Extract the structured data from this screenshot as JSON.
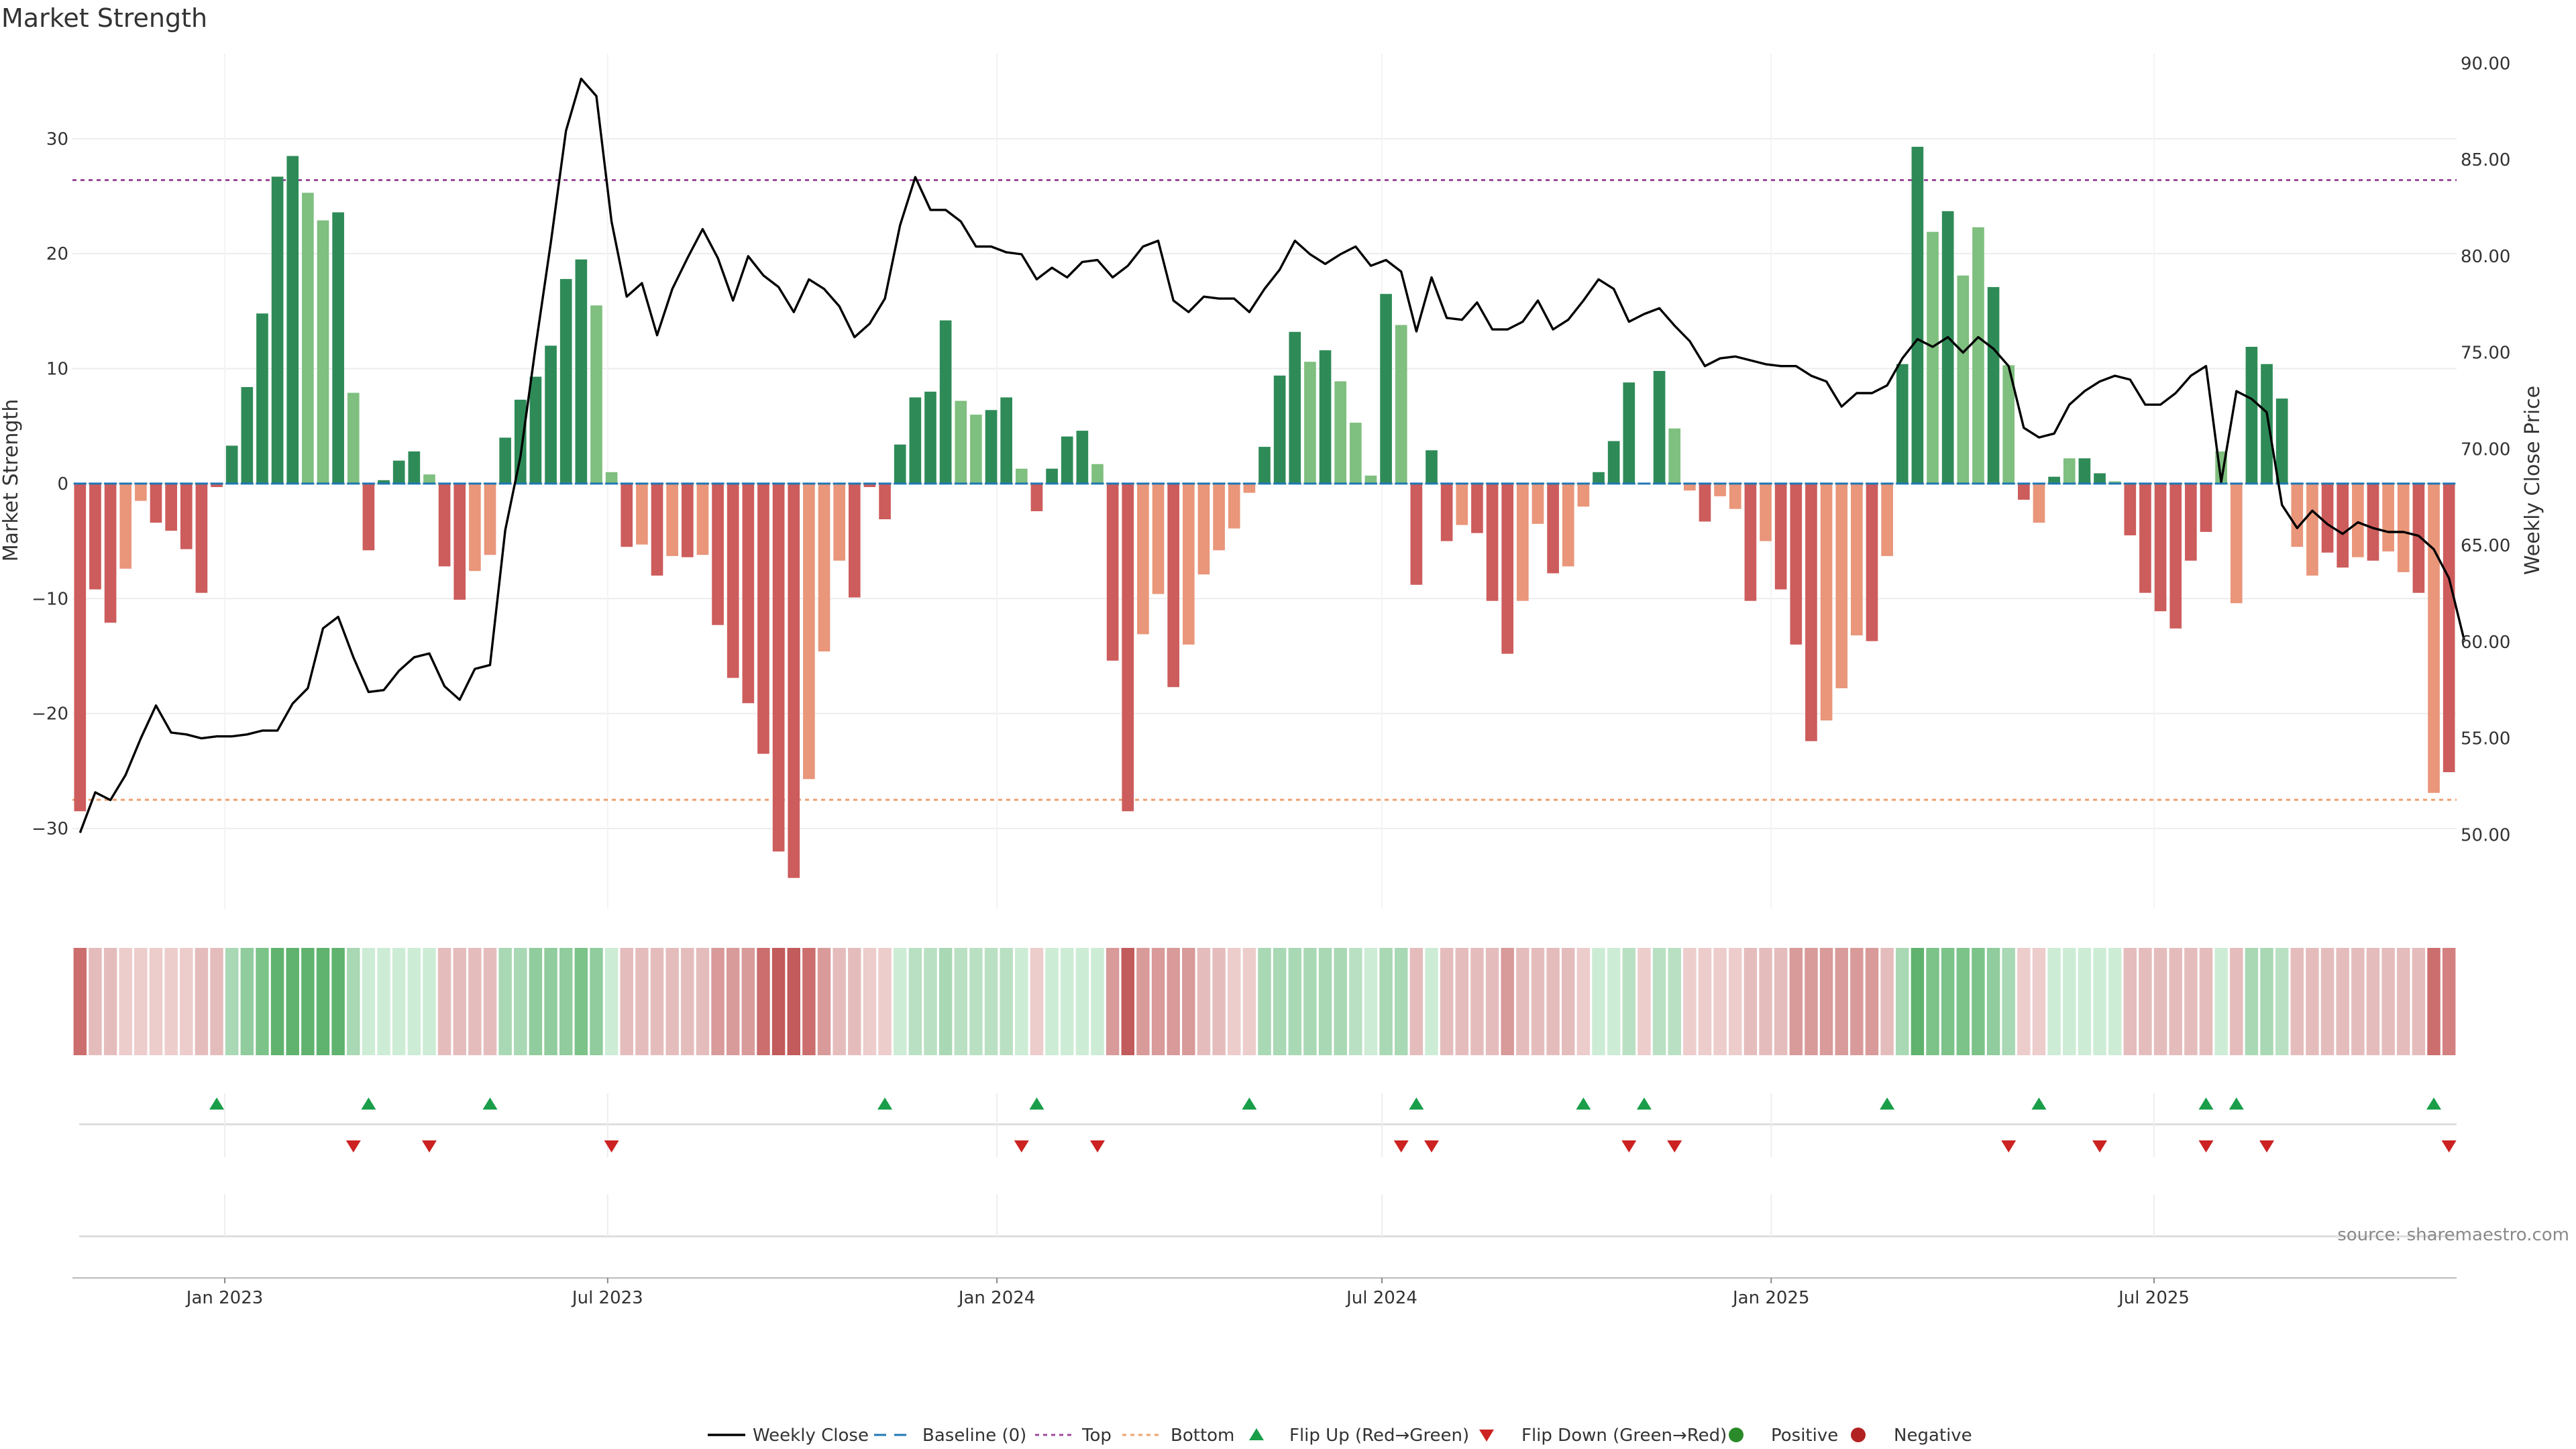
{
  "chart_data": {
    "type": "bar",
    "title": "Market Strength",
    "ylabel": "Market Strength",
    "y2label": "Weekly Close Price",
    "ylim": [
      -37,
      37.4
    ],
    "y2lim": [
      46.15,
      90.5
    ],
    "yticks": [
      -30,
      -20,
      -10,
      0,
      10,
      20,
      30
    ],
    "yticklabels": [
      "−30",
      "−20",
      "−10",
      "0",
      "10",
      "20",
      "30"
    ],
    "y2ticks": [
      50,
      55,
      60,
      65,
      70,
      75,
      80,
      85,
      90
    ],
    "y2ticklabels": [
      "50.00",
      "55.00",
      "60.00",
      "65.00",
      "70.00",
      "75.00",
      "80.00",
      "85.00",
      "90.00"
    ],
    "x_start": "2022-10-21",
    "x_end": "2025-11-21",
    "xticks": [
      "2023-01-01",
      "2023-07-01",
      "2024-01-01",
      "2024-07-01",
      "2025-01-01",
      "2025-07-01"
    ],
    "xticklabels": [
      "Jan 2023",
      "Jul 2023",
      "Jan 2024",
      "Jul 2024",
      "Jan 2025",
      "Jul 2025"
    ],
    "top_line": 26.4,
    "bottom_line": -27.5,
    "grid": true,
    "legend_position": "bottom-center",
    "source_text": "source: sharemaestro.com",
    "legend": [
      "Weekly Close",
      "Baseline (0)",
      "Top",
      "Bottom",
      "Flip Up (Red→Green)",
      "Flip Down (Green→Red)",
      "Positive",
      "Negative"
    ],
    "colors": {
      "strong_green": "#2e8b57",
      "light_green": "#7fbf7f",
      "strong_red": "#cd5c5c",
      "light_red": "#e9967a",
      "line": "#000000",
      "baseline": "#1f77b4",
      "top": "#9b4a9b",
      "bottom": "#f0a070",
      "flip_up": "#1a9e4a",
      "flip_down": "#cc2222",
      "positive_dot": "#2a8a2a",
      "negative_dot": "#b22222"
    },
    "bar_values": [
      -28.5,
      -9.2,
      -12.1,
      -7.4,
      -1.5,
      -3.4,
      -4.1,
      -5.7,
      -9.5,
      -0.3,
      3.3,
      8.4,
      14.8,
      26.7,
      28.5,
      25.3,
      22.9,
      23.6,
      7.9,
      -5.8,
      0.3,
      2.0,
      2.8,
      0.8,
      -7.2,
      -10.1,
      -7.6,
      -6.2,
      4.0,
      7.3,
      9.3,
      12.0,
      17.8,
      19.5,
      15.5,
      1.0,
      -5.5,
      -5.3,
      -8.0,
      -6.3,
      -6.4,
      -6.2,
      -12.3,
      -16.9,
      -19.1,
      -23.5,
      -32.0,
      -34.3,
      -25.7,
      -14.6,
      -6.7,
      -9.9,
      -0.3,
      -3.1,
      3.4,
      7.5,
      8.0,
      14.2,
      7.2,
      6.0,
      6.4,
      7.5,
      1.3,
      -2.4,
      1.3,
      4.1,
      4.6,
      1.7,
      -15.4,
      -28.5,
      -13.1,
      -9.6,
      -17.7,
      -14.0,
      -7.9,
      -5.8,
      -3.9,
      -0.8,
      3.2,
      9.4,
      13.2,
      10.6,
      11.6,
      8.9,
      5.3,
      0.7,
      16.5,
      13.8,
      -8.8,
      2.9,
      -5.0,
      -3.6,
      -4.3,
      -10.2,
      -14.8,
      -10.2,
      -3.5,
      -7.8,
      -7.2,
      -2.0,
      1.0,
      3.7,
      8.8,
      0.0,
      9.8,
      4.8,
      -0.6,
      -3.3,
      -1.1,
      -2.2,
      -10.2,
      -5.0,
      -9.2,
      -14.0,
      -22.4,
      -20.6,
      -17.8,
      -13.2,
      -13.7,
      -6.3,
      10.4,
      29.3,
      21.9,
      23.7,
      18.1,
      22.3,
      17.1,
      10.3,
      -1.4,
      -3.4,
      0.6,
      2.2,
      2.2,
      0.9,
      0.2,
      -4.5,
      -9.5,
      -11.1,
      -12.6,
      -6.7,
      -4.2,
      2.8,
      -10.4,
      11.9,
      10.4,
      7.4,
      -5.5,
      -8.0,
      -6.0,
      -7.3,
      -6.4,
      -6.7,
      -5.9,
      -7.7,
      -9.5,
      -26.9,
      -25.1
    ],
    "bar_shades": [
      "D",
      "D",
      "D",
      "L",
      "L",
      "D",
      "D",
      "D",
      "D",
      "D",
      "D",
      "D",
      "D",
      "D",
      "D",
      "L",
      "L",
      "D",
      "L",
      "D",
      "D",
      "D",
      "D",
      "L",
      "D",
      "D",
      "L",
      "L",
      "D",
      "D",
      "D",
      "D",
      "D",
      "D",
      "L",
      "L",
      "D",
      "L",
      "D",
      "L",
      "D",
      "L",
      "D",
      "D",
      "D",
      "D",
      "D",
      "D",
      "L",
      "L",
      "L",
      "D",
      "D",
      "D",
      "D",
      "D",
      "D",
      "D",
      "L",
      "L",
      "D",
      "D",
      "L",
      "D",
      "D",
      "D",
      "D",
      "L",
      "D",
      "D",
      "L",
      "L",
      "D",
      "L",
      "L",
      "L",
      "L",
      "L",
      "D",
      "D",
      "D",
      "L",
      "D",
      "L",
      "L",
      "L",
      "D",
      "L",
      "D",
      "D",
      "D",
      "L",
      "D",
      "D",
      "D",
      "L",
      "L",
      "D",
      "L",
      "L",
      "D",
      "D",
      "D",
      "L",
      "D",
      "L",
      "L",
      "D",
      "L",
      "L",
      "D",
      "L",
      "D",
      "D",
      "D",
      "L",
      "L",
      "L",
      "D",
      "L",
      "D",
      "D",
      "L",
      "D",
      "L",
      "L",
      "D",
      "L",
      "D",
      "L",
      "D",
      "L",
      "D",
      "D",
      "L",
      "D",
      "D",
      "D",
      "D",
      "D",
      "D",
      "L",
      "L",
      "D",
      "D",
      "D",
      "L",
      "L",
      "D",
      "D",
      "L",
      "D",
      "L",
      "L",
      "D",
      "L",
      "D",
      "D",
      "D",
      "L"
    ],
    "strip_colors": [
      "#cc6e6e",
      "#e5bcbc",
      "#e5bcbc",
      "#edcccc",
      "#edcccc",
      "#edcccc",
      "#edcccc",
      "#edcccc",
      "#e5bcbc",
      "#e5bcbc",
      "#a9d8b4",
      "#90cc9d",
      "#7cc38a",
      "#5fb36e",
      "#5fb36e",
      "#5fb36e",
      "#5fb36e",
      "#5fb36e",
      "#a9d8b4",
      "#cdecd5",
      "#cdecd5",
      "#cdecd5",
      "#cdecd5",
      "#cdecd5",
      "#e5bcbc",
      "#e5bcbc",
      "#e5bcbc",
      "#e5bcbc",
      "#a9d8b4",
      "#a9d8b4",
      "#90cc9d",
      "#90cc9d",
      "#90cc9d",
      "#7cc38a",
      "#90cc9d",
      "#cdecd5",
      "#e5bcbc",
      "#e5bcbc",
      "#e5bcbc",
      "#e5bcbc",
      "#e5bcbc",
      "#e5bcbc",
      "#d99a9a",
      "#d99a9a",
      "#d99a9a",
      "#cc6e6e",
      "#c25b5b",
      "#c25b5b",
      "#cc6e6e",
      "#d99a9a",
      "#e5bcbc",
      "#e5bcbc",
      "#edcccc",
      "#edcccc",
      "#cdecd5",
      "#b9e0c2",
      "#b9e0c2",
      "#a9d8b4",
      "#b9e0c2",
      "#b9e0c2",
      "#b9e0c2",
      "#b9e0c2",
      "#cdecd5",
      "#edcccc",
      "#cdecd5",
      "#cdecd5",
      "#cdecd5",
      "#cdecd5",
      "#d99a9a",
      "#c25b5b",
      "#d99a9a",
      "#d99a9a",
      "#d99a9a",
      "#d99a9a",
      "#e5bcbc",
      "#e5bcbc",
      "#edcccc",
      "#edcccc",
      "#a9d8b4",
      "#a9d8b4",
      "#a9d8b4",
      "#a9d8b4",
      "#a9d8b4",
      "#a9d8b4",
      "#b9e0c2",
      "#cdecd5",
      "#a9d8b4",
      "#a9d8b4",
      "#e5bcbc",
      "#cdecd5",
      "#e5bcbc",
      "#e5bcbc",
      "#e5bcbc",
      "#e5bcbc",
      "#d99a9a",
      "#e5bcbc",
      "#e5bcbc",
      "#e5bcbc",
      "#e5bcbc",
      "#edcccc",
      "#cdecd5",
      "#cdecd5",
      "#b9e0c2",
      "#edcccc",
      "#b9e0c2",
      "#b9e0c2",
      "#edcccc",
      "#edcccc",
      "#edcccc",
      "#edcccc",
      "#e5bcbc",
      "#e5bcbc",
      "#e5bcbc",
      "#d99a9a",
      "#d99a9a",
      "#d99a9a",
      "#d99a9a",
      "#d99a9a",
      "#d99a9a",
      "#e5bcbc",
      "#a9d8b4",
      "#5fb36e",
      "#7cc38a",
      "#7cc38a",
      "#7cc38a",
      "#7cc38a",
      "#90cc9d",
      "#a9d8b4",
      "#edcccc",
      "#edcccc",
      "#cdecd5",
      "#cdecd5",
      "#cdecd5",
      "#cdecd5",
      "#cdecd5",
      "#e5bcbc",
      "#e5bcbc",
      "#e5bcbc",
      "#e5bcbc",
      "#e5bcbc",
      "#e5bcbc",
      "#cdecd5",
      "#e5bcbc",
      "#a9d8b4",
      "#a9d8b4",
      "#b9e0c2",
      "#e5bcbc",
      "#e5bcbc",
      "#e5bcbc",
      "#e5bcbc",
      "#e5bcbc",
      "#e5bcbc",
      "#e5bcbc",
      "#e5bcbc",
      "#e5bcbc",
      "#cc6e6e",
      "#d48080"
    ],
    "flip_up_weeks": [
      9,
      19,
      27,
      53,
      63,
      77,
      88,
      99,
      103,
      119,
      129,
      140,
      142,
      155
    ],
    "flip_down_weeks": [
      18,
      23,
      35,
      62,
      67,
      87,
      89,
      102,
      105,
      127,
      133,
      140,
      144,
      156
    ],
    "close_prices": [
      50.1,
      52.2,
      51.8,
      53.1,
      55.0,
      56.7,
      55.3,
      55.2,
      55.0,
      55.1,
      55.1,
      55.2,
      55.4,
      55.4,
      56.8,
      57.6,
      60.7,
      61.3,
      59.2,
      57.4,
      57.5,
      58.5,
      59.2,
      59.4,
      57.7,
      57.0,
      58.6,
      58.8,
      65.8,
      69.6,
      75.3,
      80.7,
      86.5,
      89.2,
      88.3,
      81.8,
      77.9,
      78.6,
      75.9,
      78.3,
      79.9,
      81.4,
      79.9,
      77.7,
      80.0,
      79.0,
      78.4,
      77.1,
      78.8,
      78.3,
      77.4,
      75.8,
      76.5,
      77.8,
      81.6,
      84.1,
      82.4,
      82.4,
      81.8,
      80.5,
      80.5,
      80.2,
      80.1,
      78.8,
      79.4,
      78.9,
      79.7,
      79.8,
      78.9,
      79.5,
      80.5,
      80.8,
      77.7,
      77.1,
      77.9,
      77.8,
      77.8,
      77.1,
      78.3,
      79.3,
      80.8,
      80.1,
      79.6,
      80.1,
      80.5,
      79.5,
      79.8,
      79.2,
      76.1,
      78.9,
      76.8,
      76.7,
      77.6,
      76.2,
      76.2,
      76.6,
      77.7,
      76.2,
      76.7,
      77.7,
      78.8,
      78.3,
      76.6,
      77.0,
      77.3,
      76.4,
      75.6,
      74.3,
      74.7,
      74.8,
      74.6,
      74.4,
      74.3,
      74.3,
      73.8,
      73.5,
      72.2,
      72.9,
      72.9,
      73.3,
      74.7,
      75.7,
      75.3,
      75.8,
      75.0,
      75.8,
      75.2,
      74.3,
      71.1,
      70.6,
      70.8,
      72.3,
      73.0,
      73.5,
      73.8,
      73.6,
      72.3,
      72.3,
      72.9,
      73.8,
      74.3,
      68.3,
      73.0,
      72.6,
      71.9,
      67.1,
      65.9,
      66.8,
      66.1,
      65.6,
      66.2,
      65.9,
      65.7,
      65.7,
      65.5,
      64.8,
      63.3,
      60.1
    ]
  }
}
